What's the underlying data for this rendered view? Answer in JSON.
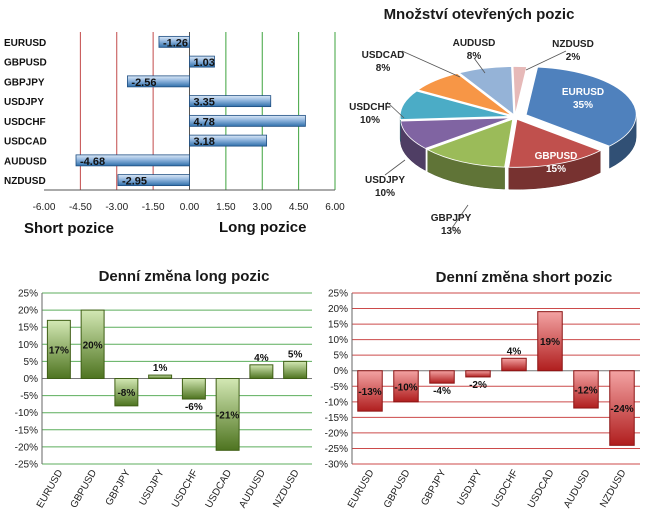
{
  "colors": {
    "bar_blue_dark": "#2f6faa",
    "bar_blue_light": "#c9dcf2",
    "green_dark": "#3f5f16",
    "green_light": "#d3e8b4",
    "red_dark": "#a21b1b",
    "red_light": "#f3a3a3",
    "grid_green": "#4aa54a",
    "grid_red": "#c84545"
  },
  "chart_data": [
    {
      "id": "positions",
      "type": "bar",
      "orientation": "horizontal",
      "categories": [
        "EURUSD",
        "GBPUSD",
        "GBPJPY",
        "USDJPY",
        "USDCHF",
        "USDCAD",
        "AUDUSD",
        "NZDUSD"
      ],
      "values": [
        -1.26,
        1.03,
        -2.56,
        3.35,
        4.78,
        3.18,
        -4.68,
        -2.95
      ],
      "value_labels": [
        "-1.26",
        "1.03",
        "-2.56",
        "3.35",
        "4.78",
        "3.18",
        "-4.68",
        "-2.95"
      ],
      "xlim": [
        -6,
        6
      ],
      "x_ticks": [
        "-6.00",
        "-4.50",
        "-3.00",
        "-1.50",
        "0.00",
        "1.50",
        "3.00",
        "4.50",
        "6.00"
      ],
      "short_label": "Short pozice",
      "long_label": "Long pozice"
    },
    {
      "id": "open-positions-pie",
      "type": "pie",
      "title": "Množství otevřených pozic",
      "slices": [
        {
          "label": "EURUSD",
          "pct_label": "35%",
          "value": 35,
          "color": "#4f81bd"
        },
        {
          "label": "GBPUSD",
          "pct_label": "15%",
          "value": 15,
          "color": "#c0504d"
        },
        {
          "label": "GBPJPY",
          "pct_label": "13%",
          "value": 13,
          "color": "#9bbb59"
        },
        {
          "label": "USDJPY",
          "pct_label": "10%",
          "value": 10,
          "color": "#8064a2"
        },
        {
          "label": "USDCHF",
          "pct_label": "10%",
          "value": 10,
          "color": "#4bacc6"
        },
        {
          "label": "USDCAD",
          "pct_label": "8%",
          "value": 8,
          "color": "#f79646"
        },
        {
          "label": "AUDUSD",
          "pct_label": "8%",
          "value": 8,
          "color": "#95b3d7"
        },
        {
          "label": "NZDUSD",
          "pct_label": "2%",
          "value": 2,
          "color": "#e6b9b8"
        }
      ]
    },
    {
      "id": "long-change",
      "type": "bar",
      "title": "Denní změna long pozic",
      "categories": [
        "EURUSD",
        "GBPUSD",
        "GBPJPY",
        "USDJPY",
        "USDCHF",
        "USDCAD",
        "AUDUSD",
        "NZDUSD"
      ],
      "values": [
        17,
        20,
        -8,
        1,
        -6,
        -21,
        4,
        5
      ],
      "value_labels": [
        "17%",
        "20%",
        "-8%",
        "1%",
        "-6%",
        "-21%",
        "4%",
        "5%"
      ],
      "ylim": [
        -25,
        25
      ],
      "y_ticks": [
        "25%",
        "20%",
        "15%",
        "10%",
        "5%",
        "0%",
        "-5%",
        "-10%",
        "-15%",
        "-20%",
        "-25%"
      ]
    },
    {
      "id": "short-change",
      "type": "bar",
      "title": "Denní změna short pozic",
      "categories": [
        "EURUSD",
        "GBPUSD",
        "GBPJPY",
        "USDJPY",
        "USDCHF",
        "USDCAD",
        "AUDUSD",
        "NZDUSD"
      ],
      "values": [
        -13,
        -10,
        -4,
        -2,
        4,
        19,
        -12,
        -24
      ],
      "value_labels": [
        "-13%",
        "-10%",
        "-4%",
        "-2%",
        "4%",
        "19%",
        "-12%",
        "-24%"
      ],
      "ylim": [
        -30,
        25
      ],
      "y_ticks": [
        "25%",
        "20%",
        "15%",
        "10%",
        "5%",
        "0%",
        "-5%",
        "-10%",
        "-15%",
        "-20%",
        "-25%",
        "-30%"
      ]
    }
  ]
}
